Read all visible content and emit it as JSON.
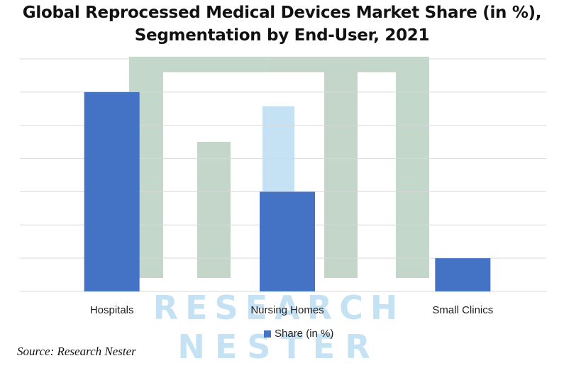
{
  "chart_data": {
    "type": "bar",
    "title_line1": "Global Reprocessed Medical Devices Market Share (in %),",
    "title_line2": "Segmentation by End-User, 2021",
    "categories": [
      "Hospitals",
      "Nursing Homes",
      "Small Clinics"
    ],
    "series": [
      {
        "name": "Share (in %)",
        "values": [
          60,
          30,
          10
        ],
        "color": "#4472C4"
      }
    ],
    "ylim": [
      0,
      70
    ],
    "ytick_step": 10,
    "grid": true,
    "legend": "bottom",
    "xlabel": "",
    "ylabel": ""
  },
  "source": "Source: Research Nester",
  "watermark": "RESEARCH NESTER"
}
